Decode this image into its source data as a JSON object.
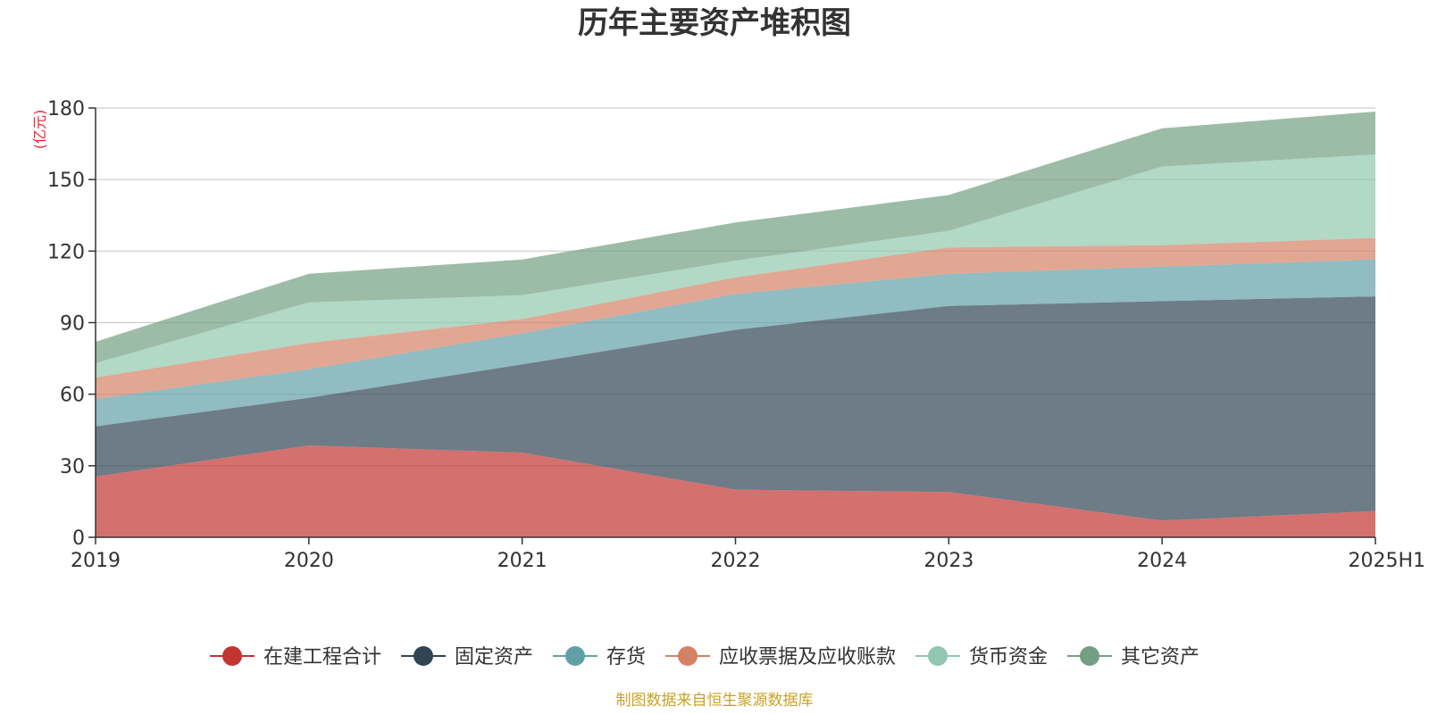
{
  "chart_data": {
    "type": "area",
    "stacked": true,
    "title": "历年主要资产堆积图",
    "unit_label": "(亿元)",
    "x": [
      "2019",
      "2020",
      "2021",
      "2022",
      "2023",
      "2024",
      "2025H1"
    ],
    "ylim": [
      0,
      180
    ],
    "yticks": [
      0,
      30,
      60,
      90,
      120,
      150,
      180
    ],
    "grid": true,
    "legend_position": "bottom",
    "series": [
      {
        "name": "在建工程合计",
        "color": "#c23531",
        "values": [
          25.5,
          38.5,
          35.5,
          20.0,
          19.0,
          7.0,
          11.0
        ]
      },
      {
        "name": "固定资产",
        "color": "#2f4554",
        "values": [
          21.0,
          20.0,
          37.0,
          67.0,
          78.0,
          92.0,
          90.0
        ]
      },
      {
        "name": "存货",
        "color": "#61a0a8",
        "values": [
          11.5,
          12.0,
          13.0,
          15.0,
          13.5,
          14.5,
          15.5
        ]
      },
      {
        "name": "应收票据及应收账款",
        "color": "#d48265",
        "values": [
          9.0,
          11.0,
          6.0,
          7.0,
          11.0,
          9.0,
          9.0
        ]
      },
      {
        "name": "货币资金",
        "color": "#91c7ae",
        "values": [
          6.0,
          17.0,
          10.0,
          7.0,
          7.0,
          33.0,
          35.0
        ]
      },
      {
        "name": "其它资产",
        "color": "#749f83",
        "values": [
          9.0,
          12.0,
          15.0,
          16.0,
          15.0,
          16.0,
          18.0
        ]
      }
    ]
  },
  "source_note": "制图数据来自恒生聚源数据库"
}
